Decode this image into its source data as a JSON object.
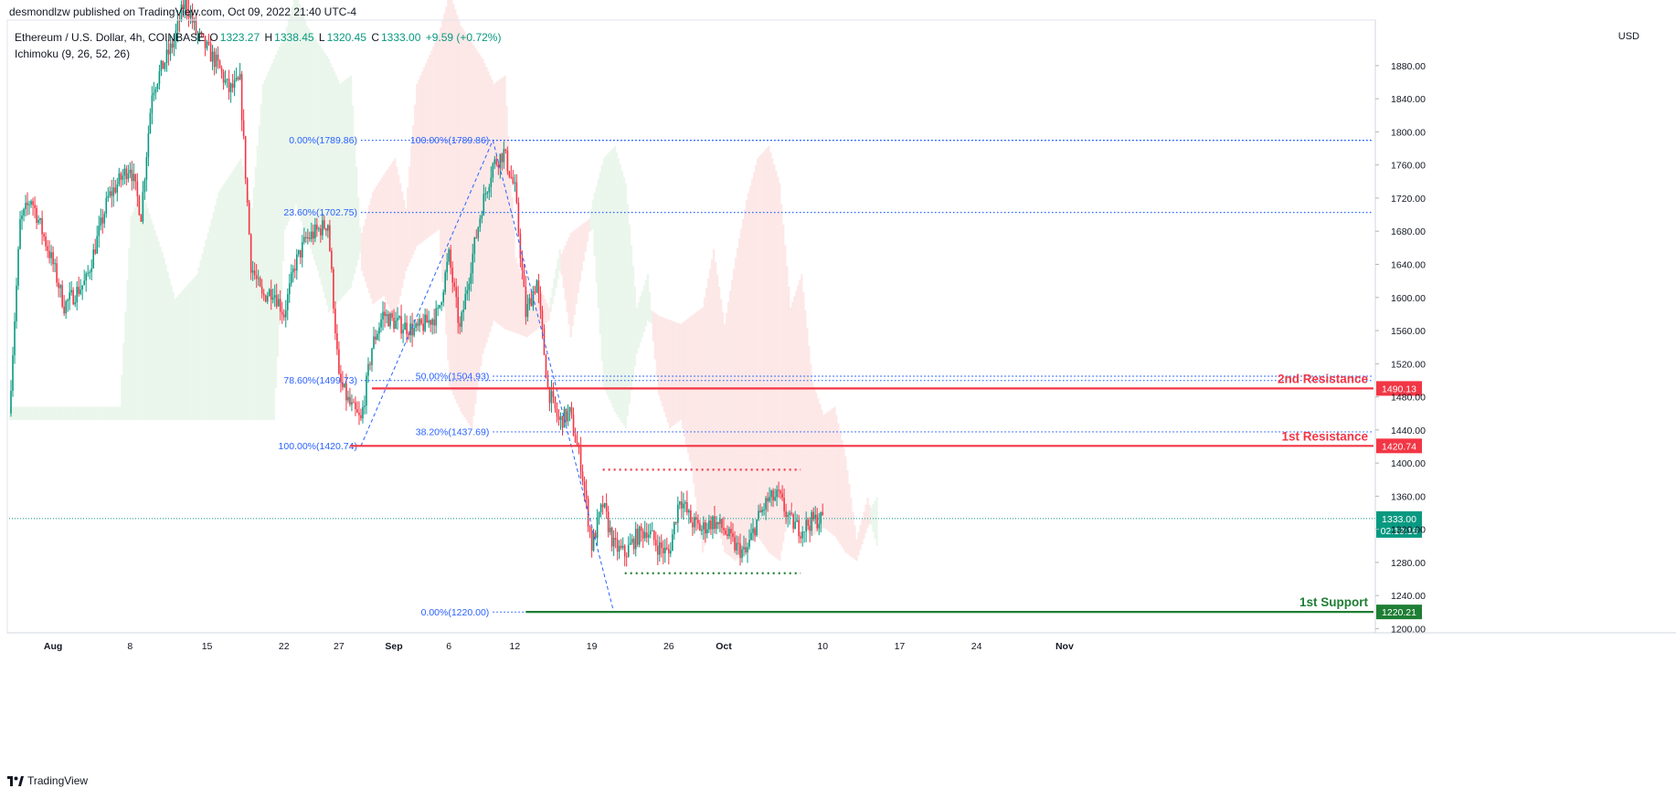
{
  "header": {
    "published": "desmondlzw published on TradingView.com, Oct 09, 2022 21:40 UTC-4",
    "symbol": "Ethereum / U.S. Dollar, 4h, COINBASE",
    "ohlc": {
      "open_label": "O",
      "open": "1323.27",
      "high_label": "H",
      "high": "1338.45",
      "low_label": "L",
      "low": "1320.45",
      "close_label": "C",
      "close": "1333.00",
      "change": "+9.59 (+0.72%)"
    },
    "indicator": "Ichimoku (9, 26, 52, 26)",
    "currency": "USD"
  },
  "footer": {
    "brand": "TradingView",
    "logo_icon": "tradingview-logo-icon"
  },
  "colors": {
    "up": "#089981",
    "down": "#f23645",
    "fib": "#2962ff",
    "resistance": "#f23645",
    "support": "#1e7e34",
    "cloud_bull": "#e8f5e9",
    "cloud_bear": "#fde4e4"
  },
  "chart_data": {
    "type": "candlestick",
    "symbol": "Ethereum / U.S. Dollar",
    "interval": "4h",
    "ylim": [
      1195,
      1935
    ],
    "y_ticks": [
      1200,
      1240,
      1280,
      1320,
      1360,
      1400,
      1440,
      1480,
      1520,
      1560,
      1600,
      1640,
      1680,
      1720,
      1760,
      1800,
      1840,
      1880
    ],
    "y_tick_labels": [
      "1200.00",
      "1240.00",
      "1280.00",
      "1320.00",
      "1360.00",
      "1400.00",
      "1440.00",
      "1480.00",
      "1520.00",
      "1560.00",
      "1600.00",
      "1640.00",
      "1680.00",
      "1720.00",
      "1760.00",
      "1800.00",
      "1840.00",
      "1880.00"
    ],
    "x_ticks": [
      "Aug",
      "8",
      "15",
      "22",
      "27",
      "Sep",
      "6",
      "12",
      "19",
      "26",
      "Oct",
      "10",
      "17",
      "24",
      "Nov"
    ],
    "x_tick_dates": [
      "2022-08-01",
      "2022-08-08",
      "2022-08-15",
      "2022-08-22",
      "2022-08-27",
      "2022-09-01",
      "2022-09-06",
      "2022-09-12",
      "2022-09-19",
      "2022-09-26",
      "2022-10-01",
      "2022-10-10",
      "2022-10-17",
      "2022-10-24",
      "2022-11-01"
    ],
    "price_path": [
      [
        "2022-07-28",
        1460
      ],
      [
        "2022-07-29",
        1690
      ],
      [
        "2022-07-30",
        1720
      ],
      [
        "2022-08-01",
        1640
      ],
      [
        "2022-08-02",
        1590
      ],
      [
        "2022-08-04",
        1620
      ],
      [
        "2022-08-06",
        1720
      ],
      [
        "2022-08-08",
        1760
      ],
      [
        "2022-08-09",
        1700
      ],
      [
        "2022-08-10",
        1850
      ],
      [
        "2022-08-12",
        1910
      ],
      [
        "2022-08-13",
        1960
      ],
      [
        "2022-08-14",
        1920
      ],
      [
        "2022-08-15",
        1900
      ],
      [
        "2022-08-16",
        1880
      ],
      [
        "2022-08-17",
        1850
      ],
      [
        "2022-08-18",
        1860
      ],
      [
        "2022-08-19",
        1640
      ],
      [
        "2022-08-20",
        1600
      ],
      [
        "2022-08-21",
        1610
      ],
      [
        "2022-08-22",
        1580
      ],
      [
        "2022-08-23",
        1640
      ],
      [
        "2022-08-24",
        1670
      ],
      [
        "2022-08-26",
        1690
      ],
      [
        "2022-08-27",
        1500
      ],
      [
        "2022-08-28",
        1470
      ],
      [
        "2022-08-29",
        1450
      ],
      [
        "2022-08-30",
        1540
      ],
      [
        "2022-08-31",
        1580
      ],
      [
        "2022-09-01",
        1570
      ],
      [
        "2022-09-03",
        1560
      ],
      [
        "2022-09-05",
        1580
      ],
      [
        "2022-09-06",
        1650
      ],
      [
        "2022-09-07",
        1560
      ],
      [
        "2022-09-08",
        1640
      ],
      [
        "2022-09-09",
        1710
      ],
      [
        "2022-09-10",
        1760
      ],
      [
        "2022-09-11",
        1775
      ],
      [
        "2022-09-12",
        1730
      ],
      [
        "2022-09-13",
        1580
      ],
      [
        "2022-09-14",
        1620
      ],
      [
        "2022-09-15",
        1490
      ],
      [
        "2022-09-16",
        1450
      ],
      [
        "2022-09-17",
        1460
      ],
      [
        "2022-09-18",
        1400
      ],
      [
        "2022-09-19",
        1300
      ],
      [
        "2022-09-20",
        1350
      ],
      [
        "2022-09-21",
        1300
      ],
      [
        "2022-09-22",
        1290
      ],
      [
        "2022-09-23",
        1310
      ],
      [
        "2022-09-24",
        1320
      ],
      [
        "2022-09-25",
        1300
      ],
      [
        "2022-09-26",
        1290
      ],
      [
        "2022-09-27",
        1360
      ],
      [
        "2022-09-28",
        1330
      ],
      [
        "2022-09-29",
        1320
      ],
      [
        "2022-09-30",
        1330
      ],
      [
        "2022-10-01",
        1320
      ],
      [
        "2022-10-02",
        1300
      ],
      [
        "2022-10-03",
        1290
      ],
      [
        "2022-10-04",
        1330
      ],
      [
        "2022-10-05",
        1355
      ],
      [
        "2022-10-06",
        1360
      ],
      [
        "2022-10-07",
        1330
      ],
      [
        "2022-10-08",
        1320
      ],
      [
        "2022-10-09",
        1330
      ],
      [
        "2022-10-10",
        1333
      ]
    ],
    "last_price": {
      "value": 1333.0,
      "label": "1333.00",
      "countdown": "02:19:16"
    },
    "fibonacci_retracements": [
      {
        "name": "upper",
        "from_date": "2022-08-29",
        "to_date": "2022-09-10",
        "levels": [
          {
            "label": "0.00%(1789.86)",
            "price": 1789.86
          },
          {
            "label": "23.60%(1702.75)",
            "price": 1702.75
          },
          {
            "label": "78.60%(1499.73)",
            "price": 1499.73
          },
          {
            "label": "100.00%(1420.74)",
            "price": 1420.74
          }
        ]
      },
      {
        "name": "lower",
        "from_date": "2022-09-10",
        "to_date": "2022-09-21",
        "levels": [
          {
            "label": "100.00%(1789.86)",
            "price": 1789.86
          },
          {
            "label": "50.00%(1504.93)",
            "price": 1504.93
          },
          {
            "label": "38.20%(1437.69)",
            "price": 1437.69
          },
          {
            "label": "0.00%(1220.00)",
            "price": 1220.0
          }
        ]
      }
    ],
    "horizontal_levels": [
      {
        "name": "2nd Resistance",
        "price": 1490.13,
        "label": "1490.13",
        "color": "#f23645",
        "from_date": "2022-08-30"
      },
      {
        "name": "1st Resistance",
        "price": 1420.74,
        "label": "1420.74",
        "color": "#f23645",
        "from_date": "2022-08-28"
      },
      {
        "name": "1st Support",
        "price": 1220.21,
        "label": "1220.21",
        "color": "#1e7e34",
        "from_date": "2022-09-13"
      }
    ],
    "range_lines": [
      {
        "price": 1392,
        "from_date": "2022-09-20",
        "to_date": "2022-10-08",
        "color": "#f23645",
        "style": "dotted"
      },
      {
        "price": 1267,
        "from_date": "2022-09-22",
        "to_date": "2022-10-08",
        "color": "#1e7e34",
        "style": "dotted"
      }
    ],
    "grid": false,
    "legend": "top-left"
  }
}
